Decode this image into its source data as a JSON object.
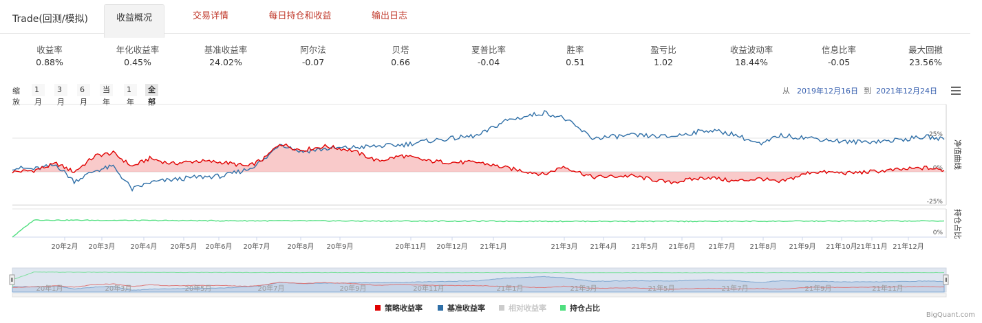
{
  "header": {
    "title": "Trade(回测/模拟)",
    "tabs": [
      {
        "label": "收益概况",
        "active": true
      },
      {
        "label": "交易详情",
        "active": false
      },
      {
        "label": "每日持仓和收益",
        "active": false
      },
      {
        "label": "输出日志",
        "active": false
      }
    ]
  },
  "stats": [
    {
      "label": "收益率",
      "value": "0.88%"
    },
    {
      "label": "年化收益率",
      "value": "0.45%"
    },
    {
      "label": "基准收益率",
      "value": "24.02%"
    },
    {
      "label": "阿尔法",
      "value": "-0.07"
    },
    {
      "label": "贝塔",
      "value": "0.66"
    },
    {
      "label": "夏普比率",
      "value": "-0.04"
    },
    {
      "label": "胜率",
      "value": "0.51"
    },
    {
      "label": "盈亏比",
      "value": "1.02"
    },
    {
      "label": "收益波动率",
      "value": "18.44%"
    },
    {
      "label": "信息比率",
      "value": "-0.05"
    },
    {
      "label": "最大回撤",
      "value": "23.56%"
    }
  ],
  "zoom": {
    "label": "缩放",
    "buttons": [
      "1月",
      "3月",
      "6月",
      "当年",
      "1年",
      "全部"
    ],
    "selected": "全部"
  },
  "range": {
    "from_label": "从",
    "from": "2019年12月16日",
    "to_label": "到",
    "to": "2021年12月24日"
  },
  "menu_icon": "hamburger-menu-icon",
  "chart_data": {
    "type": "line",
    "panes": [
      {
        "title": "净值曲线",
        "yticks": [
          "25%",
          "0%",
          "-25%"
        ],
        "ylim": [
          -25,
          50
        ]
      },
      {
        "title": "持仓占比",
        "yticks": [
          "0%"
        ],
        "ylim": [
          0,
          100
        ]
      }
    ],
    "x_tick_labels": [
      "20年2月",
      "20年3月",
      "20年4月",
      "20年5月",
      "20年6月",
      "20年7月",
      "20年8月",
      "20年9月",
      "20年11月",
      "20年12月",
      "21年1月",
      "21年3月",
      "21年4月",
      "21年5月",
      "21年6月",
      "21年7月",
      "21年8月",
      "21年9月",
      "21年10月",
      "21年11月",
      "21年12月"
    ],
    "navigator_tick_labels": [
      "20年1月",
      "20年3月",
      "20年5月",
      "20年7月",
      "20年9月",
      "20年11月",
      "21年1月",
      "21年3月",
      "21年5月",
      "21年7月",
      "21年9月",
      "21年11月"
    ],
    "series": [
      {
        "name": "策略收益率",
        "color": "#e00000",
        "points": [
          [
            "2019-12-16",
            0
          ],
          [
            "2020-01-02",
            1
          ],
          [
            "2020-01-20",
            6
          ],
          [
            "2020-02-03",
            0
          ],
          [
            "2020-02-20",
            12
          ],
          [
            "2020-03-05",
            14
          ],
          [
            "2020-03-20",
            4
          ],
          [
            "2020-04-03",
            10
          ],
          [
            "2020-04-20",
            6
          ],
          [
            "2020-05-10",
            8
          ],
          [
            "2020-06-01",
            7
          ],
          [
            "2020-06-20",
            4
          ],
          [
            "2020-07-03",
            10
          ],
          [
            "2020-07-15",
            21
          ],
          [
            "2020-08-01",
            16
          ],
          [
            "2020-08-20",
            19
          ],
          [
            "2020-09-10",
            16
          ],
          [
            "2020-10-01",
            8
          ],
          [
            "2020-10-20",
            12
          ],
          [
            "2020-11-10",
            8
          ],
          [
            "2020-12-01",
            7
          ],
          [
            "2020-12-20",
            7
          ],
          [
            "2021-01-10",
            3
          ],
          [
            "2021-02-10",
            -2
          ],
          [
            "2021-02-25",
            4
          ],
          [
            "2021-03-20",
            -4
          ],
          [
            "2021-04-20",
            -3
          ],
          [
            "2021-05-20",
            -8
          ],
          [
            "2021-06-20",
            -4
          ],
          [
            "2021-07-10",
            -7
          ],
          [
            "2021-08-01",
            -5
          ],
          [
            "2021-08-15",
            -8
          ],
          [
            "2021-09-10",
            0
          ],
          [
            "2021-10-10",
            -1
          ],
          [
            "2021-11-10",
            1
          ],
          [
            "2021-12-10",
            3
          ],
          [
            "2021-12-24",
            1
          ]
        ]
      },
      {
        "name": "基准收益率",
        "color": "#2f6fa7",
        "points": [
          [
            "2019-12-16",
            3
          ],
          [
            "2020-01-02",
            2
          ],
          [
            "2020-01-20",
            5
          ],
          [
            "2020-02-03",
            -7
          ],
          [
            "2020-02-20",
            1
          ],
          [
            "2020-03-05",
            4
          ],
          [
            "2020-03-20",
            -13
          ],
          [
            "2020-04-03",
            -8
          ],
          [
            "2020-04-20",
            -6
          ],
          [
            "2020-05-10",
            -4
          ],
          [
            "2020-06-01",
            -3
          ],
          [
            "2020-06-20",
            2
          ],
          [
            "2020-07-03",
            9
          ],
          [
            "2020-07-15",
            21
          ],
          [
            "2020-08-01",
            15
          ],
          [
            "2020-08-20",
            17
          ],
          [
            "2020-09-10",
            18
          ],
          [
            "2020-10-01",
            19
          ],
          [
            "2020-10-20",
            20
          ],
          [
            "2020-11-10",
            23
          ],
          [
            "2020-12-01",
            25
          ],
          [
            "2020-12-20",
            27
          ],
          [
            "2021-01-10",
            38
          ],
          [
            "2021-02-10",
            44
          ],
          [
            "2021-02-25",
            40
          ],
          [
            "2021-03-20",
            25
          ],
          [
            "2021-04-20",
            27
          ],
          [
            "2021-05-20",
            26
          ],
          [
            "2021-06-20",
            31
          ],
          [
            "2021-07-10",
            28
          ],
          [
            "2021-08-01",
            20
          ],
          [
            "2021-08-15",
            27
          ],
          [
            "2021-09-10",
            25
          ],
          [
            "2021-10-10",
            22
          ],
          [
            "2021-11-10",
            23
          ],
          [
            "2021-12-10",
            26
          ],
          [
            "2021-12-24",
            24
          ]
        ]
      },
      {
        "name": "相对收益率",
        "color": "#cccccc",
        "hidden": true,
        "points": []
      },
      {
        "name": "持仓占比",
        "color": "#4fdf7f",
        "points": [
          [
            "2019-12-16",
            0
          ],
          [
            "2020-01-02",
            92
          ],
          [
            "2020-06-01",
            88
          ],
          [
            "2020-12-01",
            86
          ],
          [
            "2021-06-01",
            85
          ],
          [
            "2021-12-24",
            87
          ]
        ]
      }
    ],
    "legend_position": "bottom-center"
  },
  "credit": "BigQuant.com"
}
